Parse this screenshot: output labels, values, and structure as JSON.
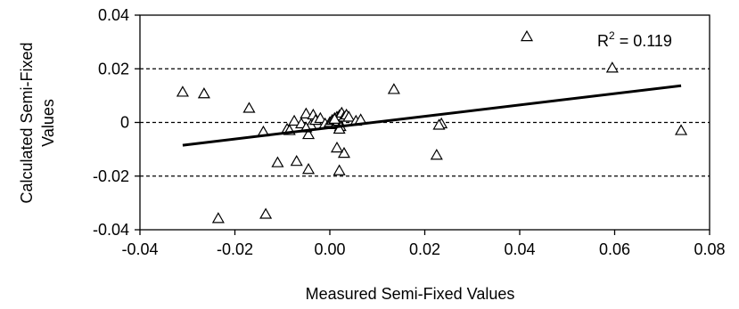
{
  "chart_data": {
    "type": "scatter",
    "title": "",
    "xlabel": "Measured Semi-Fixed Values",
    "ylabel": "Calculated Semi-Fixed Values",
    "xlim": [
      -0.04,
      0.08
    ],
    "ylim": [
      -0.04,
      0.04
    ],
    "xticks": [
      "-0.04",
      "-0.02",
      "0.00",
      "0.02",
      "0.04",
      "0.06",
      "0.08"
    ],
    "yticks": [
      "-0.04",
      "-0.02",
      "0",
      "0.02",
      "0.04"
    ],
    "grid": "horizontal dashed",
    "legend": "none",
    "marker": "open-triangle",
    "annotation": {
      "prefix": "R",
      "superscript": "2",
      "suffix": " = 0.119"
    },
    "trendline": {
      "x": [
        -0.031,
        0.074
      ],
      "y": [
        -0.0085,
        0.0137
      ]
    },
    "points": {
      "x": [
        0.0415,
        0.0595,
        0.0135,
        -0.031,
        -0.0265,
        -0.017,
        -0.014,
        -0.009,
        -0.0085,
        -0.0075,
        -0.006,
        -0.005,
        -0.0045,
        -0.004,
        -0.0035,
        -0.003,
        -0.002,
        -0.001,
        0.0,
        0.0005,
        0.001,
        0.0012,
        0.0015,
        0.0018,
        0.002,
        0.0022,
        0.0025,
        0.003,
        0.0035,
        0.004,
        0.0055,
        0.0065,
        0.0235,
        0.023,
        0.0225,
        0.074,
        0.001,
        0.002,
        0.003,
        -0.007,
        -0.011,
        -0.0045,
        -0.0235,
        -0.0135,
        -0.005,
        0.0015,
        0.002
      ],
      "y": [
        0.032,
        0.0203,
        0.0123,
        0.0113,
        0.0107,
        0.0053,
        -0.0035,
        -0.0025,
        -0.003,
        0.0005,
        -0.0005,
        0.0032,
        -0.0045,
        -0.001,
        0.0028,
        0.0008,
        0.0015,
        -0.0005,
        0.0,
        0.0008,
        0.0015,
        -0.0008,
        0.002,
        0.0005,
        0.0025,
        -0.0015,
        0.0035,
        0.002,
        0.0028,
        0.002,
        0.0005,
        0.001,
        -0.0005,
        -0.001,
        -0.0122,
        -0.003,
        0.0012,
        -0.0025,
        -0.0115,
        -0.0145,
        -0.015,
        -0.0175,
        -0.0358,
        -0.0342,
        -0.002,
        -0.0095,
        -0.018
      ]
    }
  }
}
